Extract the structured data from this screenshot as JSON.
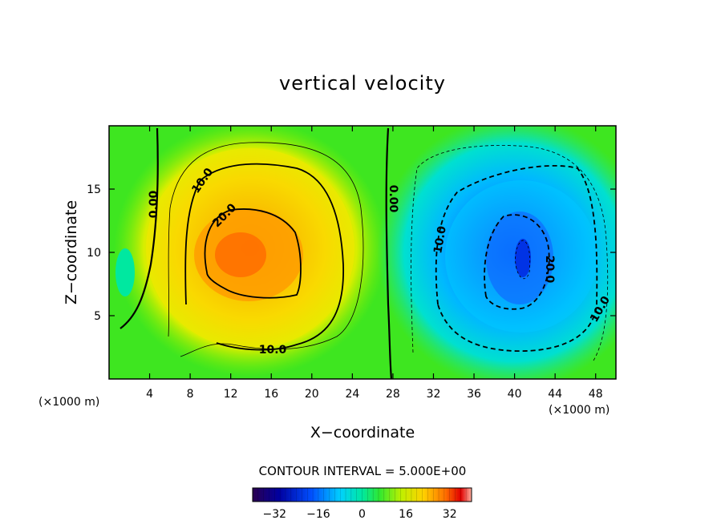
{
  "chart_data": {
    "type": "heatmap",
    "title": "vertical velocity",
    "xlabel": "X−coordinate",
    "ylabel": "Z−coordinate",
    "x_unit_left": "(×1000 m)",
    "x_unit_right": "(×1000 m)",
    "xlim": [
      0,
      50
    ],
    "ylim": [
      0,
      20
    ],
    "x_ticks": [
      4,
      8,
      12,
      16,
      20,
      24,
      28,
      32,
      36,
      40,
      44,
      48
    ],
    "y_ticks": [
      5,
      10,
      15
    ],
    "contour_interval_text": "CONTOUR INTERVAL = 5.000E+00",
    "contour_interval": 5,
    "contour_labels": [
      "0.00",
      "10.0",
      "20.0",
      "0.00",
      "10.0",
      "20.0",
      "10.0",
      "10.0"
    ],
    "features": [
      {
        "kind": "updraft",
        "center": [
          14,
          10
        ],
        "max": 28
      },
      {
        "kind": "downdraft",
        "center": [
          40.5,
          9.5
        ],
        "min": -27
      }
    ],
    "colorbar": {
      "range": [
        -40,
        40
      ],
      "ticks": [
        -32,
        -16,
        0,
        16,
        32
      ],
      "tick_labels": [
        "−32",
        "−16",
        "0",
        "16",
        "32"
      ]
    },
    "colormap": [
      "#2b0050",
      "#0000a0",
      "#0050ff",
      "#00d0ff",
      "#00e8a0",
      "#30e830",
      "#c0f000",
      "#ffd000",
      "#ff7000",
      "#e00000",
      "#ffb0a0"
    ]
  }
}
